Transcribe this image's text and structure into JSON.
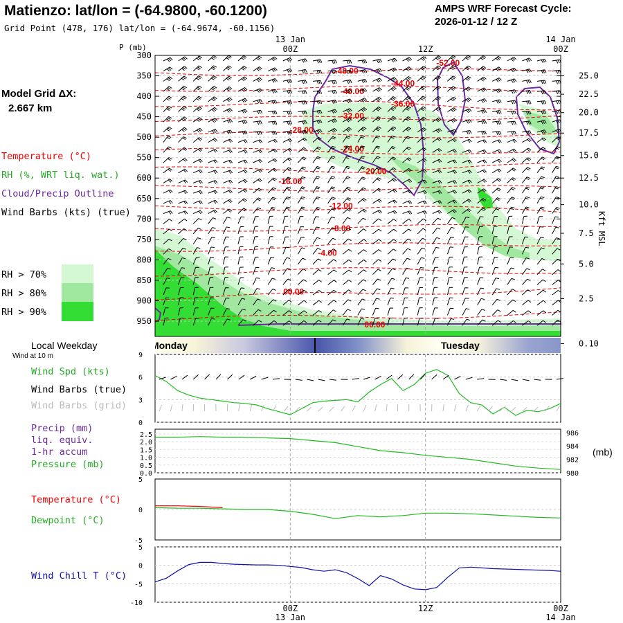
{
  "header": {
    "title": "Matienzo:  lat/lon = (-64.9800, -60.1200)",
    "grid_point": "Grid Point (478, 176) lat/lon = (-64.9674, -60.1156)",
    "forecast_line1": "AMPS WRF Forecast Cycle:",
    "forecast_line2": "2026-01-12 / 12  Z"
  },
  "model_grid": {
    "label": "Model Grid ΔX:",
    "value": "2.667 km"
  },
  "legend": {
    "temperature": "Temperature (°C)",
    "rh": "RH (%, WRT liq. wat.)",
    "cloud": "Cloud/Precip Outline",
    "wind_barbs": "Wind Barbs (kts) (true)",
    "rh70": "RH > 70%",
    "rh80": "RH > 80%",
    "rh90": "RH > 90%"
  },
  "colors": {
    "temperature": "#ee0000",
    "rh70": "#d4f8d4",
    "rh80": "#a0e8a0",
    "rh90": "#33dd33",
    "cloud": "#6a2aa0",
    "wind_speed": "#22bb22",
    "wind_chill": "#1010aa",
    "barbs_grid": "#bbbbbb"
  },
  "time_axis": {
    "top_labels": [
      {
        "line1": "13 Jan",
        "line2": "00Z",
        "hour": 12
      },
      {
        "line1": "",
        "line2": "12Z",
        "hour": 24
      },
      {
        "line1": "14 Jan",
        "line2": "00Z",
        "hour": 36
      }
    ],
    "bottom_labels": [
      {
        "line1": "00Z",
        "line2": "13 Jan",
        "hour": 12
      },
      {
        "line1": "12Z",
        "line2": "",
        "hour": 24
      },
      {
        "line1": "00Z",
        "line2": "14 Jan",
        "hour": 36
      }
    ],
    "weekday_label": "Local Weekday",
    "wind_at": "Wind at 10 m",
    "days": [
      "Monday",
      "Tuesday"
    ]
  },
  "sections": {
    "wind_spd": "Wind Spd (kts)",
    "wind_barbs_true": "Wind Barbs (true)",
    "wind_barbs_grid": "Wind Barbs (grid)",
    "precip1": "Precip (mm)",
    "precip2": "liq. equiv.",
    "precip3": "1-hr accum",
    "pressure": "Pressure (mb)",
    "pressure_unit": "(mb)",
    "temperature": "Temperature (°C)",
    "dewpoint": "Dewpoint (°C)",
    "wind_chill": "Wind Chill T (°C)"
  },
  "chart_data": [
    {
      "type": "contour",
      "name": "cross-section",
      "y_axis_label": "P (mb)",
      "y_right_label": "Kft MSL",
      "x_range_hours": [
        0,
        36
      ],
      "p_levels": [
        "300",
        "350",
        "400",
        "450",
        "500",
        "550",
        "600",
        "650",
        "700",
        "750",
        "800",
        "850",
        "900",
        "950"
      ],
      "kft_ticks": [
        {
          "label": "25.0",
          "p": 350
        },
        {
          "label": "22.5",
          "p": 395
        },
        {
          "label": "20.0",
          "p": 440
        },
        {
          "label": "17.5",
          "p": 490
        },
        {
          "label": "15.0",
          "p": 545
        },
        {
          "label": "12.5",
          "p": 600
        },
        {
          "label": "10.0",
          "p": 665
        },
        {
          "label": "7.5",
          "p": 735
        },
        {
          "label": "5.0",
          "p": 810
        },
        {
          "label": "2.5",
          "p": 895
        },
        {
          "label": "0.10",
          "p": 1005
        }
      ],
      "temperature_labels": [
        {
          "text": "-52.00",
          "hour": 26,
          "p": 325
        },
        {
          "text": "-48.00",
          "hour": 17,
          "p": 345
        },
        {
          "text": "-44.00",
          "hour": 22,
          "p": 375
        },
        {
          "text": "-40.00",
          "hour": 17.5,
          "p": 395
        },
        {
          "text": "-36.00",
          "hour": 22,
          "p": 425
        },
        {
          "text": "-32.00",
          "hour": 17.5,
          "p": 455
        },
        {
          "text": "-28.00",
          "hour": 13,
          "p": 490
        },
        {
          "text": "-24.00",
          "hour": 17.5,
          "p": 535
        },
        {
          "text": "-20.00",
          "hour": 19.5,
          "p": 590
        },
        {
          "text": "-16.00",
          "hour": 12,
          "p": 615
        },
        {
          "text": "-12.00",
          "hour": 16.5,
          "p": 675
        },
        {
          "text": "-8.00",
          "hour": 16.5,
          "p": 730
        },
        {
          "text": "-4.00",
          "hour": 15.3,
          "p": 790
        },
        {
          "text": "00.00",
          "hour": 12.3,
          "p": 885
        },
        {
          "text": "00.00",
          "hour": 19.5,
          "p": 965
        }
      ]
    },
    {
      "type": "line",
      "name": "wind-speed",
      "ylim": [
        0,
        9
      ],
      "yticks": [
        "0",
        "3",
        "6",
        "9"
      ],
      "x": [
        0,
        1,
        2,
        3,
        4,
        5,
        6,
        7,
        8,
        9,
        10,
        11,
        12,
        13,
        14,
        15,
        16,
        17,
        18,
        19,
        20,
        21,
        22,
        23,
        24,
        25,
        26,
        27,
        28,
        29,
        30,
        31,
        32,
        33,
        34,
        35,
        36
      ],
      "values": [
        6.2,
        5.4,
        4.2,
        3.6,
        3.2,
        3.0,
        2.8,
        2.6,
        2.5,
        2.3,
        1.8,
        1.4,
        1.0,
        1.8,
        2.6,
        2.8,
        2.9,
        3.0,
        2.7,
        4.0,
        5.0,
        5.8,
        4.2,
        5.0,
        6.5,
        7.0,
        6.2,
        3.8,
        2.6,
        2.3,
        1.1,
        2.0,
        0.9,
        1.6,
        1.4,
        1.8,
        2.5
      ]
    },
    {
      "type": "line",
      "name": "pressure",
      "y_left_ticks": [
        "0.0",
        "0.5",
        "1.0",
        "1.5",
        "2.0",
        "2.5"
      ],
      "y_right_ticks": [
        "980",
        "982",
        "984",
        "986"
      ],
      "ylim": [
        980,
        986.5
      ],
      "x": [
        0,
        2,
        4,
        6,
        8,
        10,
        12,
        14,
        16,
        18,
        20,
        22,
        24,
        26,
        28,
        30,
        32,
        34,
        36
      ],
      "values": [
        985.3,
        985.3,
        985.4,
        985.3,
        985.3,
        985.2,
        985.1,
        984.8,
        984.5,
        983.9,
        983.3,
        983.0,
        982.6,
        982.3,
        982.0,
        981.5,
        981.0,
        980.7,
        980.5
      ]
    },
    {
      "type": "line",
      "name": "temperature-dewpoint",
      "ylim": [
        -5,
        5
      ],
      "yticks": [
        "-5",
        "0",
        "5"
      ],
      "series": [
        {
          "name": "Temperature",
          "x": [
            0,
            2,
            4,
            6
          ],
          "values": [
            0.6,
            0.6,
            0.5,
            0.3
          ]
        },
        {
          "name": "Dewpoint",
          "x": [
            0,
            2,
            4,
            6,
            8,
            10,
            12,
            14,
            16,
            18,
            20,
            22,
            24,
            26,
            28,
            30,
            32,
            34,
            36
          ],
          "values": [
            0.3,
            0.2,
            0.2,
            0.1,
            0.0,
            0.0,
            -0.3,
            -0.8,
            -1.5,
            -1.0,
            -1.2,
            -1.0,
            -0.6,
            -0.6,
            -0.7,
            -0.9,
            -1.1,
            -1.3,
            -1.4
          ]
        }
      ]
    },
    {
      "type": "line",
      "name": "wind-chill",
      "ylim": [
        -10,
        5
      ],
      "yticks": [
        "-10",
        "-5",
        "0",
        "5"
      ],
      "x": [
        0,
        1,
        2,
        3,
        4,
        5,
        6,
        7,
        8,
        9,
        10,
        11,
        12,
        13,
        14,
        15,
        16,
        17,
        18,
        19,
        20,
        21,
        22,
        23,
        24,
        25,
        26,
        27,
        28,
        29,
        30,
        31,
        32,
        33,
        34,
        35,
        36
      ],
      "values": [
        -4.5,
        -3.5,
        -1.5,
        0.2,
        0.8,
        0.8,
        0.5,
        0.3,
        0.2,
        0.1,
        0.1,
        0,
        -0.3,
        -0.6,
        -1.2,
        -1.6,
        -1.2,
        -2,
        -3.6,
        -5.5,
        -2.8,
        -3.7,
        -5.3,
        -6.4,
        -6.6,
        -6,
        -3.2,
        -0.7,
        -0.5,
        -0.7,
        -0.9,
        -1,
        -1.1,
        -1.2,
        -1.3,
        -1.4,
        -1.6
      ]
    }
  ]
}
